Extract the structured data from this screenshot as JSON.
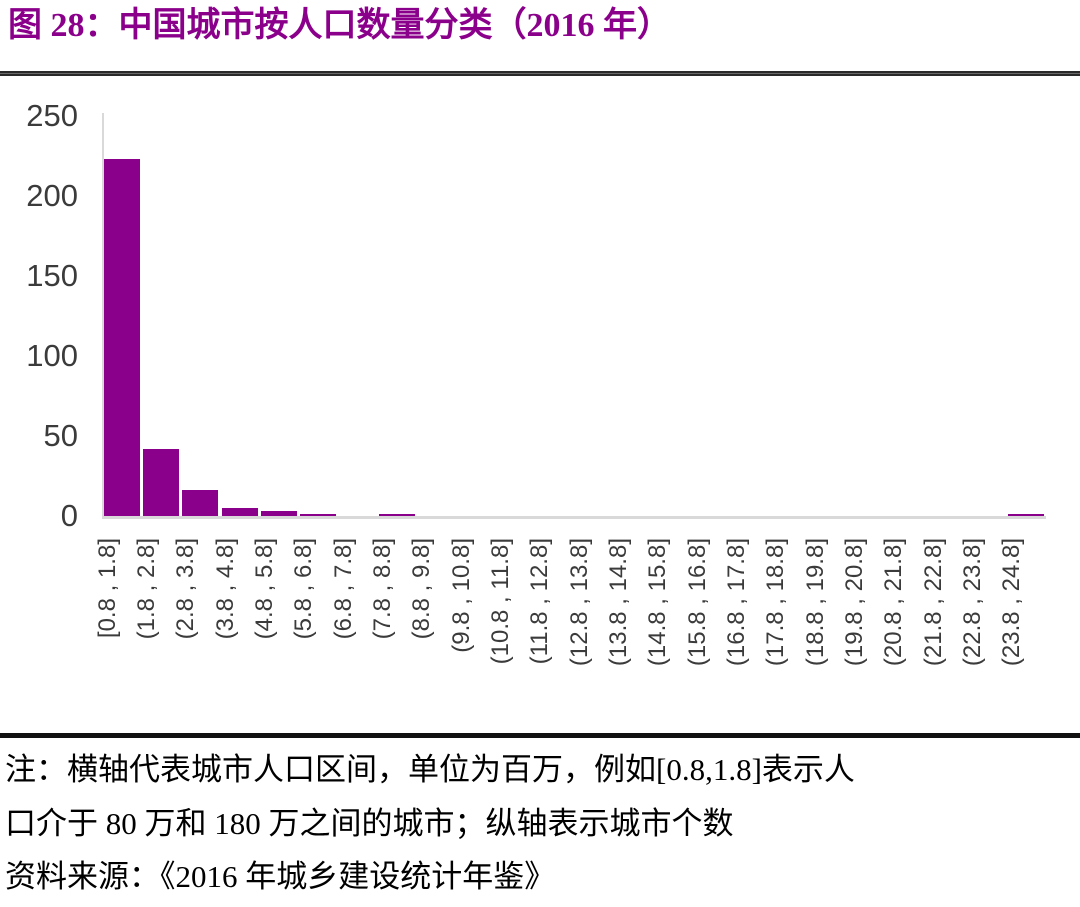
{
  "figure": {
    "title": "图 28：中国城市按人口数量分类（2016 年）"
  },
  "colors": {
    "accent": "#8B008B",
    "axis_line": "#D9D9D9",
    "tick_text": "#3B3B3B",
    "rule": "#111111"
  },
  "chart_data": {
    "type": "bar",
    "title": "图 28：中国城市按人口数量分类（2016 年）",
    "categories": [
      "[0.8 , 1.8]",
      "(1.8 , 2.8]",
      "(2.8 , 3.8]",
      "(3.8 , 4.8]",
      "(4.8 , 5.8]",
      "(5.8 , 6.8]",
      "(6.8 , 7.8]",
      "(7.8 , 8.8]",
      "(8.8 , 9.8]",
      "(9.8 , 10.8]",
      "(10.8 , 11.8]",
      "(11.8 , 12.8]",
      "(12.8 , 13.8]",
      "(13.8 , 14.8]",
      "(14.8 , 15.8]",
      "(15.8 , 16.8]",
      "(16.8 , 17.8]",
      "(17.8 , 18.8]",
      "(18.8 , 19.8]",
      "(19.8 , 20.8]",
      "(20.8 , 21.8]",
      "(21.8 , 22.8]",
      "(22.8 , 23.8]",
      "(23.8 , 24.8]"
    ],
    "values": [
      223,
      42,
      16,
      5,
      3,
      1,
      0,
      1,
      0,
      0,
      0,
      0,
      0,
      0,
      0,
      0,
      0,
      0,
      0,
      0,
      0,
      0,
      0,
      1
    ],
    "xlabel": "",
    "ylabel": "",
    "ylim": [
      0,
      250
    ],
    "yticks": [
      0,
      50,
      100,
      150,
      200,
      250
    ],
    "bar_color": "#8B008B",
    "grid": false,
    "legend_position": "none"
  },
  "notes": {
    "line1": "注：横轴代表城市人口区间，单位为百万，例如[0.8,1.8]表示人",
    "line2": "口介于 80 万和 180 万之间的城市；纵轴表示城市个数",
    "line3": "资料来源：《2016 年城乡建设统计年鉴》"
  }
}
